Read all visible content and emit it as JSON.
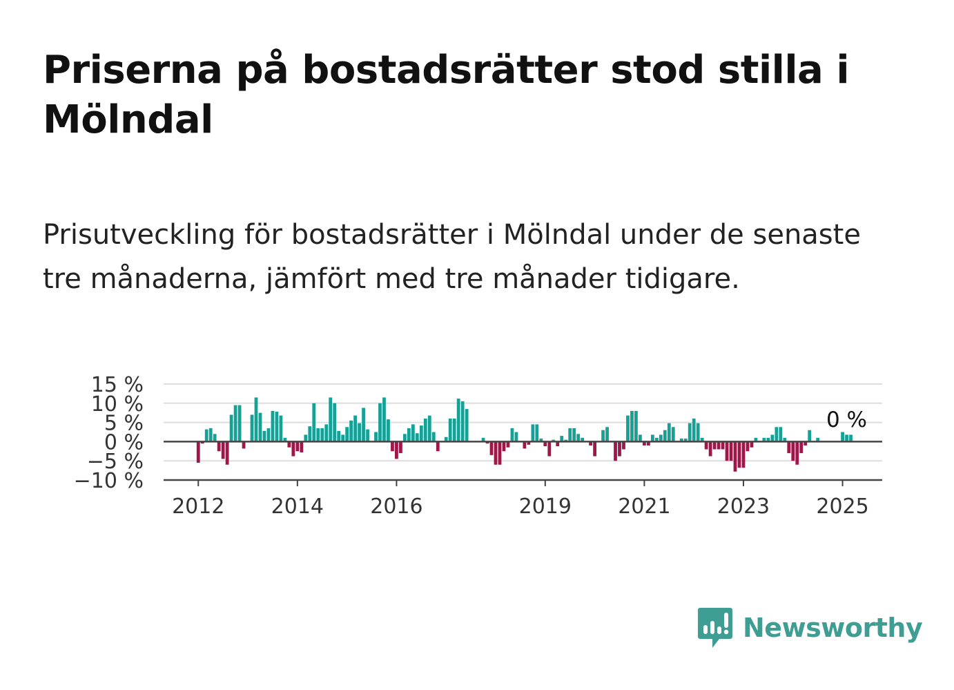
{
  "title": "Priserna på bostadsrätter stod stilla i Mölndal",
  "subtitle": "Prisutveckling för bostadsrätter i Mölndal under de senaste tre månaderna, jämfört med tre månader tidigare.",
  "brand": {
    "name": "Newsworthy",
    "icon": "newsworthy-logo-icon",
    "color": "#3f9e93"
  },
  "colors": {
    "positive": "#16a196",
    "negative": "#a0154a",
    "grid": "#dddddd",
    "axis": "#444444"
  },
  "chart_data": {
    "type": "bar",
    "y_tick_labels": [
      "15 %",
      "10 %",
      "5 %",
      "0 %",
      "−5 %",
      "−10 %"
    ],
    "y_ticks": [
      15,
      10,
      5,
      0,
      -5,
      -10
    ],
    "ylim": [
      -10,
      15
    ],
    "x_tick_labels": [
      "2012",
      "2014",
      "2016",
      "2019",
      "2021",
      "2023",
      "2025"
    ],
    "x_ticks": [
      2012,
      2014,
      2016,
      2019,
      2021,
      2023,
      2025
    ],
    "xlim": [
      2011.3,
      2025.8
    ],
    "x_start": 2012.0,
    "x_step_months": 1,
    "grid": true,
    "annotation": {
      "text": "0 %"
    },
    "values": [
      -5.5,
      -0.5,
      3.2,
      3.5,
      2.0,
      -2.5,
      -4.5,
      -6.0,
      7.0,
      9.5,
      9.5,
      -1.8,
      0,
      7.0,
      11.5,
      7.5,
      2.8,
      3.5,
      8.0,
      7.8,
      6.8,
      1.0,
      -1.5,
      -3.8,
      -2.5,
      -2.8,
      1.8,
      4.0,
      10.0,
      3.5,
      3.5,
      4.5,
      11.5,
      10.0,
      2.8,
      1.8,
      3.8,
      5.5,
      6.8,
      4.8,
      8.8,
      3.2,
      0,
      2.5,
      10.0,
      11.5,
      5.8,
      -2.5,
      -4.5,
      -3.0,
      2.0,
      3.5,
      4.5,
      2.2,
      4.2,
      6.0,
      6.8,
      2.5,
      -2.5,
      0,
      1.2,
      6.0,
      6.0,
      11.2,
      10.5,
      8.5,
      0,
      0,
      0,
      1.0,
      -0.5,
      -3.5,
      -6.0,
      -6.0,
      -2.5,
      -1.5,
      3.5,
      2.5,
      0,
      -1.8,
      -0.8,
      4.5,
      4.5,
      0.8,
      -1.2,
      -3.8,
      0.5,
      -1.2,
      1.5,
      0.5,
      3.5,
      3.5,
      2.0,
      1.0,
      0,
      -1.0,
      -3.8,
      0,
      3.0,
      3.8,
      0,
      -5.0,
      -3.8,
      -2.0,
      6.8,
      8.0,
      8.0,
      1.8,
      -1.0,
      -1.0,
      1.8,
      1.0,
      1.8,
      3.0,
      4.8,
      3.8,
      0,
      0.8,
      0.8,
      4.8,
      6.0,
      4.8,
      1.0,
      -2.0,
      -3.8,
      -2.0,
      -2.0,
      -2.0,
      -5.0,
      -5.0,
      -7.8,
      -6.8,
      -6.8,
      -2.5,
      -1.5,
      1.0,
      0,
      1.0,
      1.0,
      1.8,
      3.8,
      3.8,
      1.0,
      -3.0,
      -5.0,
      -6.0,
      -3.0,
      -1.0,
      3.0,
      0,
      1.0,
      0,
      0,
      0,
      0,
      0,
      2.5,
      1.8,
      1.8
    ]
  }
}
